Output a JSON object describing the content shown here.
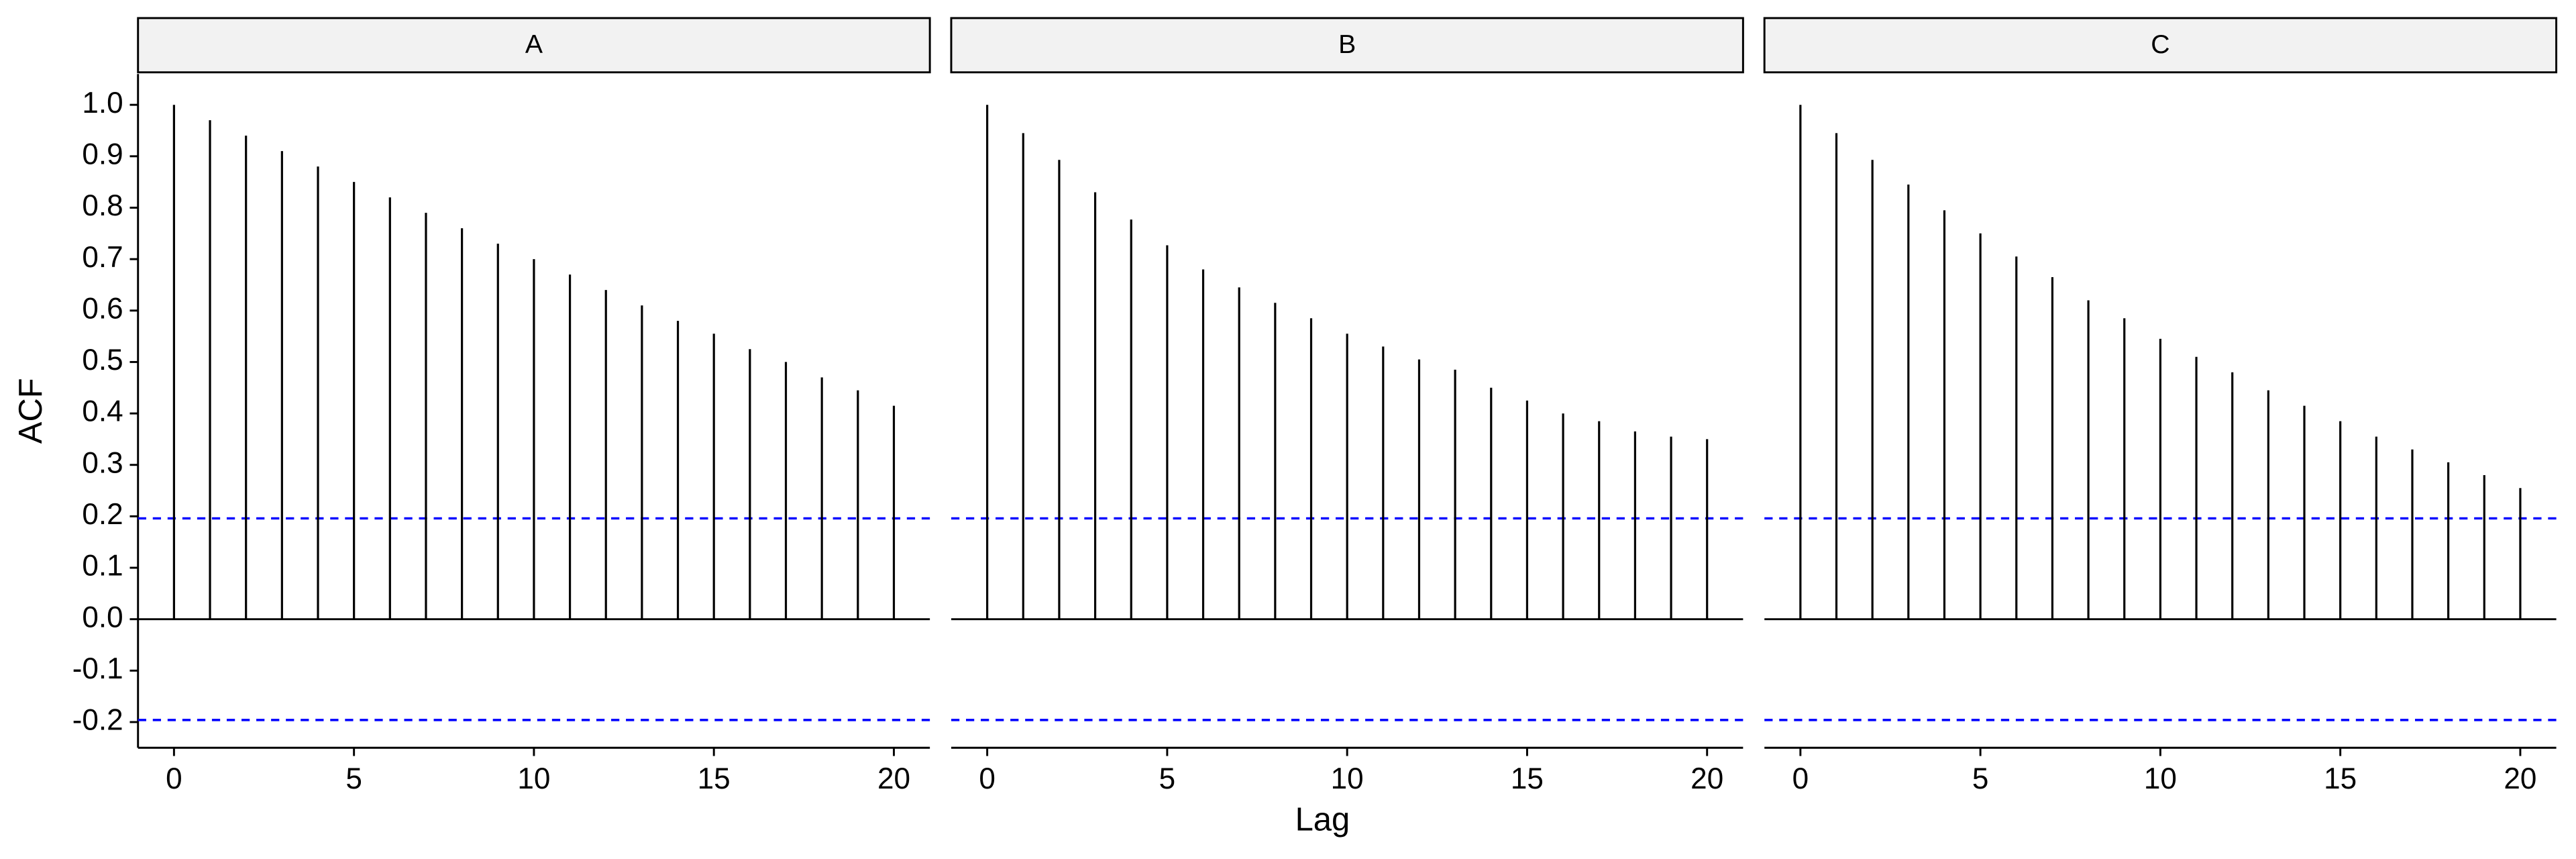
{
  "chart_data": {
    "type": "acf",
    "x_label": "Lag",
    "y_label": "ACF",
    "x": [
      0,
      1,
      2,
      3,
      4,
      5,
      6,
      7,
      8,
      9,
      10,
      11,
      12,
      13,
      14,
      15,
      16,
      17,
      18,
      19,
      20
    ],
    "panels": [
      {
        "title": "A",
        "values": [
          1.0,
          0.97,
          0.94,
          0.91,
          0.88,
          0.85,
          0.82,
          0.79,
          0.76,
          0.73,
          0.7,
          0.67,
          0.64,
          0.61,
          0.58,
          0.555,
          0.525,
          0.5,
          0.47,
          0.445,
          0.415
        ]
      },
      {
        "title": "B",
        "values": [
          1.0,
          0.945,
          0.893,
          0.83,
          0.777,
          0.727,
          0.68,
          0.645,
          0.615,
          0.585,
          0.555,
          0.53,
          0.505,
          0.485,
          0.45,
          0.425,
          0.4,
          0.385,
          0.365,
          0.355,
          0.35
        ]
      },
      {
        "title": "C",
        "values": [
          1.0,
          0.945,
          0.893,
          0.845,
          0.795,
          0.75,
          0.705,
          0.665,
          0.62,
          0.585,
          0.545,
          0.51,
          0.48,
          0.445,
          0.415,
          0.385,
          0.355,
          0.33,
          0.305,
          0.28,
          0.255
        ]
      }
    ],
    "bar_color": "#000000",
    "conf_limits": [
      0.196,
      -0.196
    ],
    "conf_color": "#0000ff",
    "xlim": [
      -1,
      21
    ],
    "xticks": [
      0,
      5,
      10,
      15,
      20
    ],
    "ylim": [
      -0.25,
      1.06
    ],
    "yticks": [
      {
        "value": 1,
        "label": "1.0"
      },
      0.9,
      0.8,
      0.7,
      0.6,
      0.5,
      0.4,
      0.3,
      0.2,
      0.1,
      {
        "value": 0,
        "label": "0.0"
      },
      -0.1,
      -0.2
    ]
  }
}
